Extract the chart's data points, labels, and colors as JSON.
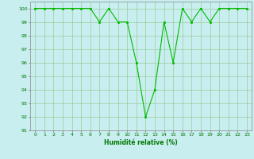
{
  "x": [
    0,
    1,
    2,
    3,
    4,
    5,
    6,
    7,
    8,
    9,
    10,
    11,
    12,
    13,
    14,
    15,
    16,
    17,
    18,
    19,
    20,
    21,
    22,
    23
  ],
  "y": [
    100,
    100,
    100,
    100,
    100,
    100,
    100,
    99,
    100,
    99,
    99,
    96,
    92,
    94,
    99,
    96,
    100,
    99,
    100,
    99,
    100,
    100,
    100,
    100
  ],
  "line_color": "#00bb00",
  "marker_color": "#00bb00",
  "bg_color": "#c8eef0",
  "grid_color": "#99cc99",
  "text_color": "#007700",
  "xlabel": "Humidité relative (%)",
  "ylim": [
    91,
    100.5
  ],
  "yticks": [
    91,
    92,
    93,
    94,
    95,
    96,
    97,
    98,
    99,
    100
  ],
  "xticks": [
    0,
    1,
    2,
    3,
    4,
    5,
    6,
    7,
    8,
    9,
    10,
    11,
    12,
    13,
    14,
    15,
    16,
    17,
    18,
    19,
    20,
    21,
    22,
    23
  ]
}
